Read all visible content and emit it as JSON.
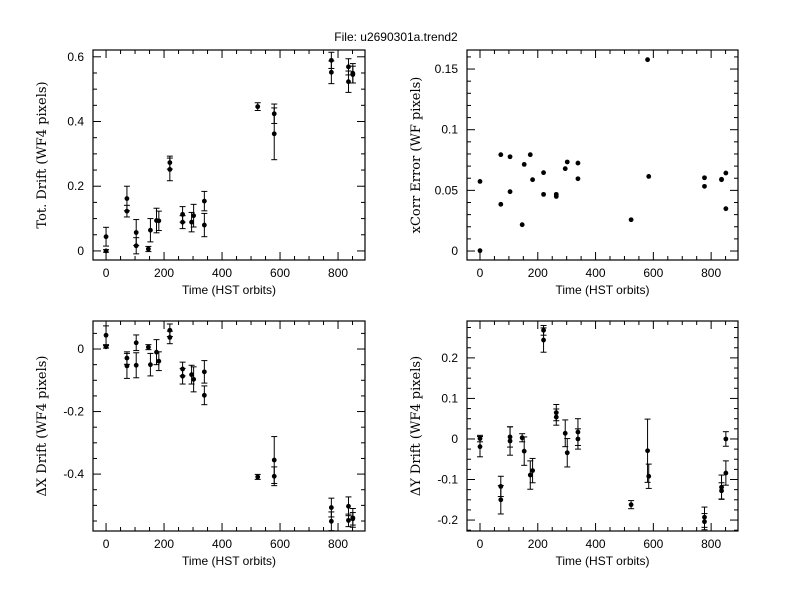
{
  "title": "File: u2690301a.trend2",
  "colors": {
    "marker": "#000000",
    "background": "#ffffff"
  },
  "chart_data": [
    {
      "type": "scatter",
      "xlabel": "Time (HST orbits)",
      "ylabel": "Tot. Drift (WF4 pixels)",
      "xlim": [
        -45,
        893
      ],
      "ylim": [
        -0.028,
        0.621
      ],
      "xticks": [
        "0",
        "200",
        "400",
        "600",
        "800"
      ],
      "xtick_values": [
        0,
        200,
        400,
        600,
        800
      ],
      "yticks": [
        "0",
        "0.2",
        "0.4",
        "0.6"
      ],
      "ytick_values": [
        0,
        0.2,
        0.4,
        0.6
      ],
      "x_minor": 50,
      "y_minor": 0.05,
      "error_bars": true,
      "points": [
        [
          0,
          0,
          0.004
        ],
        [
          0,
          0.044,
          0.029
        ],
        [
          72,
          0.162,
          0.038
        ],
        [
          72,
          0.123,
          0.018
        ],
        [
          104,
          0.057,
          0.04
        ],
        [
          104,
          0.016,
          0.025
        ],
        [
          146,
          0.006,
          0.008
        ],
        [
          153,
          0.064,
          0.036
        ],
        [
          174,
          0.094,
          0.038
        ],
        [
          182,
          0.093,
          0.03
        ],
        [
          220,
          0.273,
          0.02
        ],
        [
          220,
          0.252,
          0.035
        ],
        [
          264,
          0.113,
          0.024
        ],
        [
          264,
          0.089,
          0.02
        ],
        [
          295,
          0.089,
          0.03
        ],
        [
          302,
          0.109,
          0.035
        ],
        [
          339,
          0.154,
          0.03
        ],
        [
          339,
          0.08,
          0.036
        ],
        [
          523,
          0.446,
          0.012
        ],
        [
          580,
          0.424,
          0.03
        ],
        [
          580,
          0.362,
          0.08
        ],
        [
          777,
          0.589,
          0.025
        ],
        [
          777,
          0.552,
          0.035
        ],
        [
          836,
          0.569,
          0.025
        ],
        [
          836,
          0.523,
          0.033
        ],
        [
          851,
          0.549,
          0.03
        ],
        [
          851,
          0.545,
          0.026
        ]
      ]
    },
    {
      "type": "scatter",
      "xlabel": "Time (HST orbits)",
      "ylabel": "xCorr Error (WF pixels)",
      "xlim": [
        -45,
        893
      ],
      "ylim": [
        -0.0074,
        0.1657
      ],
      "xticks": [
        "0",
        "200",
        "400",
        "600",
        "800"
      ],
      "xtick_values": [
        0,
        200,
        400,
        600,
        800
      ],
      "yticks": [
        "0",
        "0.05",
        "0.1",
        "0.15"
      ],
      "ytick_values": [
        0,
        0.05,
        0.1,
        0.15
      ],
      "x_minor": 50,
      "y_minor": 0.01,
      "error_bars": false,
      "points": [
        [
          0,
          0.0574
        ],
        [
          0,
          0.0003
        ],
        [
          72,
          0.0794
        ],
        [
          72,
          0.0385
        ],
        [
          104,
          0.0777
        ],
        [
          104,
          0.0489
        ],
        [
          146,
          0.0217
        ],
        [
          153,
          0.0714
        ],
        [
          174,
          0.0794
        ],
        [
          182,
          0.0588
        ],
        [
          220,
          0.0646
        ],
        [
          220,
          0.0467
        ],
        [
          264,
          0.0467
        ],
        [
          264,
          0.045
        ],
        [
          295,
          0.0679
        ],
        [
          302,
          0.0734
        ],
        [
          339,
          0.0725
        ],
        [
          339,
          0.0596
        ],
        [
          523,
          0.0258
        ],
        [
          580,
          0.1577
        ],
        [
          584,
          0.0615
        ],
        [
          777,
          0.0604
        ],
        [
          777,
          0.0533
        ],
        [
          836,
          0.0591
        ],
        [
          836,
          0.0588
        ],
        [
          851,
          0.0643
        ],
        [
          851,
          0.0349
        ]
      ]
    },
    {
      "type": "scatter",
      "xlabel": "Time (HST orbits)",
      "ylabel": "ΔX Drift (WF4 pixels)",
      "xlim": [
        -45,
        893
      ],
      "ylim": [
        -0.582,
        0.0896
      ],
      "xticks": [
        "0",
        "200",
        "400",
        "600",
        "800"
      ],
      "xtick_values": [
        0,
        200,
        400,
        600,
        800
      ],
      "yticks": [
        "0",
        "-0.2",
        "-0.4"
      ],
      "ytick_values": [
        0,
        -0.2,
        -0.4
      ],
      "x_minor": 50,
      "y_minor": 0.05,
      "error_bars": true,
      "points": [
        [
          0,
          0.044,
          0.03
        ],
        [
          0,
          0.007,
          0.004
        ],
        [
          72,
          -0.029,
          0.02
        ],
        [
          72,
          -0.054,
          0.04
        ],
        [
          104,
          0.02,
          0.025
        ],
        [
          104,
          -0.052,
          0.04
        ],
        [
          146,
          0.006,
          0.008
        ],
        [
          153,
          -0.05,
          0.036
        ],
        [
          174,
          -0.01,
          0.04
        ],
        [
          182,
          -0.039,
          0.03
        ],
        [
          220,
          0.06,
          0.02
        ],
        [
          220,
          0.037,
          0.02
        ],
        [
          264,
          -0.064,
          0.022
        ],
        [
          264,
          -0.087,
          0.025
        ],
        [
          295,
          -0.082,
          0.03
        ],
        [
          302,
          -0.097,
          0.04
        ],
        [
          339,
          -0.073,
          0.036
        ],
        [
          339,
          -0.148,
          0.03
        ],
        [
          523,
          -0.409,
          0.008
        ],
        [
          580,
          -0.355,
          0.075
        ],
        [
          580,
          -0.407,
          0.03
        ],
        [
          777,
          -0.507,
          0.03
        ],
        [
          777,
          -0.551,
          0.03
        ],
        [
          836,
          -0.503,
          0.03
        ],
        [
          836,
          -0.548,
          0.02
        ],
        [
          851,
          -0.54,
          0.03
        ],
        [
          851,
          -0.543,
          0.02
        ]
      ]
    },
    {
      "type": "scatter",
      "xlabel": "Time (HST orbits)",
      "ylabel": "ΔY Drift (WF4 pixels)",
      "xlim": [
        -45,
        893
      ],
      "ylim": [
        -0.227,
        0.291
      ],
      "xticks": [
        "0",
        "200",
        "400",
        "600",
        "800"
      ],
      "xtick_values": [
        0,
        200,
        400,
        600,
        800
      ],
      "yticks": [
        "-0.2",
        "-0.1",
        "0",
        "0.1",
        "0.2"
      ],
      "ytick_values": [
        -0.2,
        -0.1,
        0,
        0.1,
        0.2
      ],
      "x_minor": 50,
      "y_minor": 0.025,
      "error_bars": true,
      "points": [
        [
          0,
          0.001,
          0.008
        ],
        [
          0,
          -0.019,
          0.025
        ],
        [
          72,
          -0.117,
          0.025
        ],
        [
          72,
          -0.15,
          0.035
        ],
        [
          104,
          0.005,
          0.025
        ],
        [
          104,
          -0.005,
          0.035
        ],
        [
          146,
          0.003,
          0.01
        ],
        [
          153,
          -0.03,
          0.035
        ],
        [
          174,
          -0.089,
          0.035
        ],
        [
          182,
          -0.078,
          0.03
        ],
        [
          220,
          0.268,
          0.012
        ],
        [
          220,
          0.244,
          0.03
        ],
        [
          264,
          0.065,
          0.02
        ],
        [
          264,
          0.054,
          0.02
        ],
        [
          295,
          0.014,
          0.033
        ],
        [
          302,
          -0.034,
          0.035
        ],
        [
          339,
          0.017,
          0.033
        ],
        [
          339,
          0,
          0.025
        ],
        [
          523,
          -0.162,
          0.01
        ],
        [
          580,
          -0.029,
          0.078
        ],
        [
          584,
          -0.092,
          0.03
        ],
        [
          777,
          -0.193,
          0.025
        ],
        [
          777,
          -0.204,
          0.02
        ],
        [
          836,
          -0.119,
          0.03
        ],
        [
          836,
          -0.128,
          0.02
        ],
        [
          851,
          0,
          0.018
        ],
        [
          851,
          -0.084,
          0.03
        ]
      ]
    }
  ]
}
